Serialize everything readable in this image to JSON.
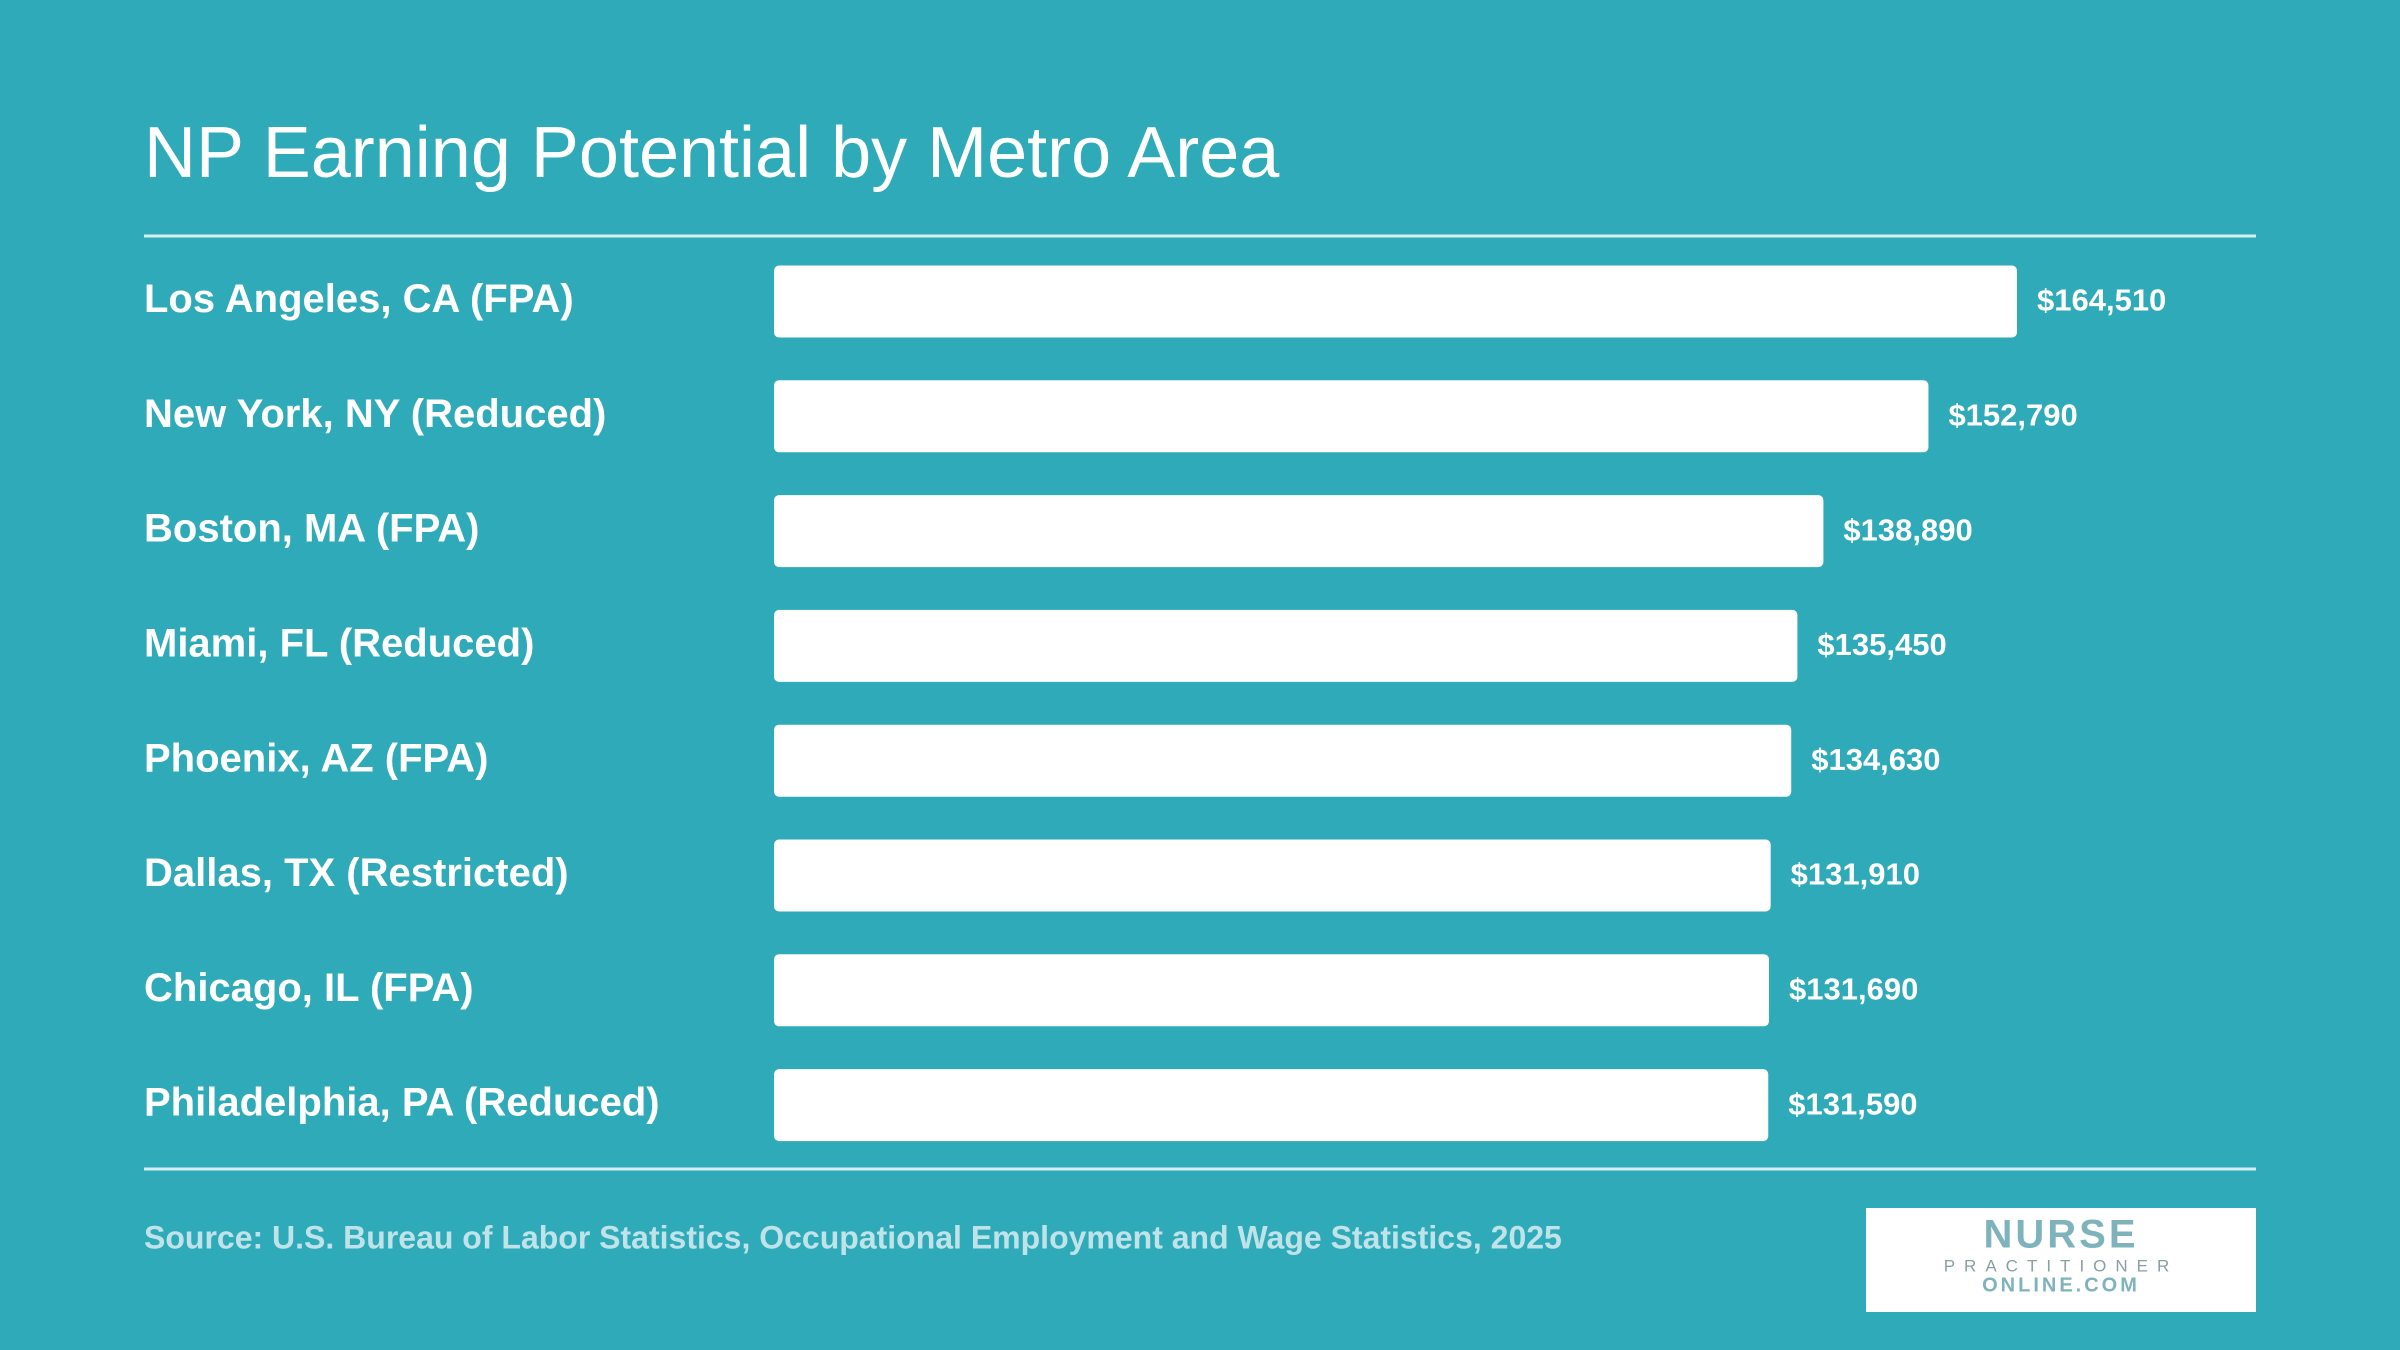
{
  "chart_data": {
    "type": "bar",
    "orientation": "horizontal",
    "title": "NP Earning Potential by Metro Area",
    "categories": [
      "Los Angeles, CA (FPA)",
      "New York, NY (Reduced)",
      "Boston, MA (FPA)",
      "Miami, FL (Reduced)",
      "Phoenix, AZ (FPA)",
      "Dallas, TX (Restricted)",
      "Chicago, IL (FPA)",
      "Philadelphia, PA (Reduced)"
    ],
    "values": [
      164510,
      152790,
      138890,
      135450,
      134630,
      131910,
      131690,
      131590
    ],
    "value_labels": [
      "$164,510",
      "$152,790",
      "$138,890",
      "$135,450",
      "$134,630",
      "$131,910",
      "$131,690",
      "$131,590"
    ],
    "color": "#ffffff",
    "source": "Source: U.S. Bureau of Labor Statistics, Occupational Employment and Wage Statistics, 2025"
  },
  "logo": {
    "line1": "NURSE",
    "line2": "PRACTITIONER",
    "line3": "ONLINE.COM"
  }
}
